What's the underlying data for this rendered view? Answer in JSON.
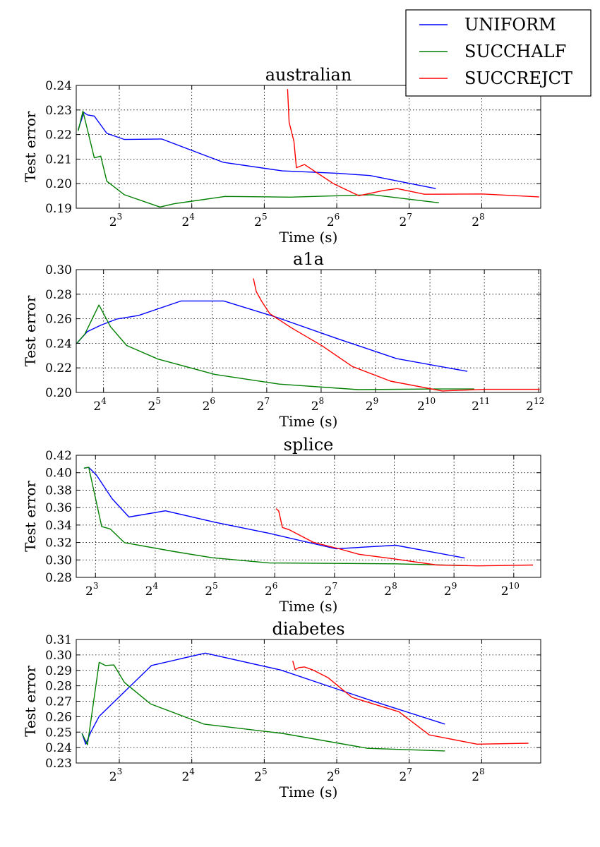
{
  "legend": {
    "placement": "top-right",
    "entries": [
      {
        "label": "UNIFORM",
        "color": "#0000ff"
      },
      {
        "label": "SUCCHALF",
        "color": "#007f00"
      },
      {
        "label": "SUCCREJCT",
        "color": "#ff0000"
      }
    ]
  },
  "chart_data": [
    {
      "type": "line",
      "title": "australian",
      "xlabel": "Time (s)",
      "ylabel": "Test error",
      "x_scale": "log2",
      "xlim": [
        5.3,
        450
      ],
      "ylim": [
        0.19,
        0.24
      ],
      "x_ticks": [
        {
          "value": 8,
          "base": "2",
          "exp": "3"
        },
        {
          "value": 16,
          "base": "2",
          "exp": "4"
        },
        {
          "value": 32,
          "base": "2",
          "exp": "5"
        },
        {
          "value": 64,
          "base": "2",
          "exp": "6"
        },
        {
          "value": 128,
          "base": "2",
          "exp": "7"
        },
        {
          "value": 256,
          "base": "2",
          "exp": "8"
        }
      ],
      "y_ticks": [
        "0.19",
        "0.20",
        "0.21",
        "0.22",
        "0.23",
        "0.24"
      ],
      "grid": true,
      "series": [
        {
          "name": "UNIFORM",
          "color": "#0000ff",
          "points": [
            [
              5.4,
              0.222
            ],
            [
              5.7,
              0.229
            ],
            [
              5.9,
              0.228
            ],
            [
              6.3,
              0.2275
            ],
            [
              7.1,
              0.2205
            ],
            [
              8.4,
              0.218
            ],
            [
              12,
              0.2182
            ],
            [
              21.6,
              0.2087
            ],
            [
              38,
              0.2052
            ],
            [
              65,
              0.2042
            ],
            [
              88,
              0.2033
            ],
            [
              165,
              0.198
            ]
          ]
        },
        {
          "name": "SUCCHALF",
          "color": "#007f00",
          "points": [
            [
              5.4,
              0.2215
            ],
            [
              5.65,
              0.2295
            ],
            [
              6.3,
              0.2105
            ],
            [
              6.7,
              0.2112
            ],
            [
              7.1,
              0.201
            ],
            [
              8.4,
              0.1955
            ],
            [
              11.8,
              0.1905
            ],
            [
              13.5,
              0.1918
            ],
            [
              22,
              0.1948
            ],
            [
              41,
              0.1945
            ],
            [
              90,
              0.1955
            ],
            [
              170,
              0.1922
            ]
          ]
        },
        {
          "name": "SUCCREJCT",
          "color": "#ff0000",
          "points": [
            [
              40,
              0.2385
            ],
            [
              40.6,
              0.225
            ],
            [
              42.5,
              0.2172
            ],
            [
              43.5,
              0.2065
            ],
            [
              47,
              0.2078
            ],
            [
              62,
              0.2
            ],
            [
              79,
              0.1951
            ],
            [
              100,
              0.1972
            ],
            [
              114,
              0.198
            ],
            [
              148,
              0.1957
            ],
            [
              257,
              0.1958
            ],
            [
              443,
              0.1946
            ]
          ]
        }
      ]
    },
    {
      "type": "line",
      "title": "a1a",
      "xlabel": "Time (s)",
      "ylabel": "Test error",
      "x_scale": "log2",
      "xlim": [
        11.3,
        4200
      ],
      "ylim": [
        0.2,
        0.3
      ],
      "x_ticks": [
        {
          "value": 16,
          "base": "2",
          "exp": "4"
        },
        {
          "value": 32,
          "base": "2",
          "exp": "5"
        },
        {
          "value": 64,
          "base": "2",
          "exp": "6"
        },
        {
          "value": 128,
          "base": "2",
          "exp": "7"
        },
        {
          "value": 256,
          "base": "2",
          "exp": "8"
        },
        {
          "value": 512,
          "base": "2",
          "exp": "9"
        },
        {
          "value": 1024,
          "base": "2",
          "exp": "10"
        },
        {
          "value": 2048,
          "base": "2",
          "exp": "11"
        },
        {
          "value": 4096,
          "base": "2",
          "exp": "12"
        }
      ],
      "y_ticks": [
        "0.20",
        "0.22",
        "0.24",
        "0.26",
        "0.28",
        "0.30"
      ],
      "grid": true,
      "series": [
        {
          "name": "UNIFORM",
          "color": "#0000ff",
          "points": [
            [
              11.4,
              0.2402
            ],
            [
              13,
              0.2495
            ],
            [
              15.5,
              0.2548
            ],
            [
              19,
              0.2598
            ],
            [
              25,
              0.2627
            ],
            [
              43,
              0.2745
            ],
            [
              74,
              0.2745
            ],
            [
              145,
              0.2612
            ],
            [
              315,
              0.2438
            ],
            [
              670,
              0.2275
            ],
            [
              1650,
              0.2172
            ]
          ]
        },
        {
          "name": "SUCCHALF",
          "color": "#007f00",
          "points": [
            [
              11.4,
              0.2402
            ],
            [
              12.6,
              0.2475
            ],
            [
              15.1,
              0.2712
            ],
            [
              17.5,
              0.2535
            ],
            [
              21.5,
              0.2382
            ],
            [
              32,
              0.2272
            ],
            [
              66,
              0.2147
            ],
            [
              150,
              0.2068
            ],
            [
              410,
              0.2023
            ],
            [
              1100,
              0.2028
            ],
            [
              1800,
              0.2028
            ]
          ]
        },
        {
          "name": "SUCCREJCT",
          "color": "#ff0000",
          "points": [
            [
              108,
              0.2928
            ],
            [
              112,
              0.2822
            ],
            [
              120,
              0.2742
            ],
            [
              133,
              0.2642
            ],
            [
              175,
              0.2527
            ],
            [
              260,
              0.2378
            ],
            [
              380,
              0.2212
            ],
            [
              620,
              0.2092
            ],
            [
              1200,
              0.2012
            ],
            [
              2100,
              0.2025
            ],
            [
              4150,
              0.2025
            ]
          ]
        }
      ]
    },
    {
      "type": "line",
      "title": "splice",
      "xlabel": "Time (s)",
      "ylabel": "Test error",
      "x_scale": "log2",
      "xlim": [
        6.4,
        1400
      ],
      "ylim": [
        0.28,
        0.42
      ],
      "x_ticks": [
        {
          "value": 8,
          "base": "2",
          "exp": "3"
        },
        {
          "value": 16,
          "base": "2",
          "exp": "4"
        },
        {
          "value": 32,
          "base": "2",
          "exp": "5"
        },
        {
          "value": 64,
          "base": "2",
          "exp": "6"
        },
        {
          "value": 128,
          "base": "2",
          "exp": "7"
        },
        {
          "value": 256,
          "base": "2",
          "exp": "8"
        },
        {
          "value": 512,
          "base": "2",
          "exp": "9"
        },
        {
          "value": 1024,
          "base": "2",
          "exp": "10"
        }
      ],
      "y_ticks": [
        "0.28",
        "0.30",
        "0.32",
        "0.34",
        "0.36",
        "0.38",
        "0.40",
        "0.42"
      ],
      "grid": true,
      "series": [
        {
          "name": "UNIFORM",
          "color": "#0000ff",
          "points": [
            [
              7,
              0.4052
            ],
            [
              7.4,
              0.4062
            ],
            [
              8.1,
              0.3972
            ],
            [
              9.7,
              0.3702
            ],
            [
              11.8,
              0.3492
            ],
            [
              18,
              0.3563
            ],
            [
              32,
              0.3432
            ],
            [
              60,
              0.3305
            ],
            [
              130,
              0.3128
            ],
            [
              260,
              0.3168
            ],
            [
              580,
              0.3022
            ]
          ]
        },
        {
          "name": "SUCCHALF",
          "color": "#007f00",
          "points": [
            [
              7,
              0.4052
            ],
            [
              7.4,
              0.4062
            ],
            [
              8.6,
              0.3382
            ],
            [
              9.5,
              0.3355
            ],
            [
              11.2,
              0.3198
            ],
            [
              20,
              0.3095
            ],
            [
              31,
              0.3025
            ],
            [
              60,
              0.2965
            ],
            [
              260,
              0.2955
            ],
            [
              600,
              0.2935
            ]
          ]
        },
        {
          "name": "SUCCREJCT",
          "color": "#ff0000",
          "points": [
            [
              65,
              0.3588
            ],
            [
              67,
              0.3562
            ],
            [
              70,
              0.3372
            ],
            [
              76,
              0.3345
            ],
            [
              100,
              0.3202
            ],
            [
              135,
              0.3128
            ],
            [
              170,
              0.3065
            ],
            [
              250,
              0.3015
            ],
            [
              420,
              0.2942
            ],
            [
              680,
              0.2932
            ],
            [
              1280,
              0.2942
            ]
          ]
        }
      ]
    },
    {
      "type": "line",
      "title": "diabetes",
      "xlabel": "Time (s)",
      "ylabel": "Test error",
      "x_scale": "log2",
      "xlim": [
        5.3,
        450
      ],
      "ylim": [
        0.23,
        0.31
      ],
      "x_ticks": [
        {
          "value": 8,
          "base": "2",
          "exp": "3"
        },
        {
          "value": 16,
          "base": "2",
          "exp": "4"
        },
        {
          "value": 32,
          "base": "2",
          "exp": "5"
        },
        {
          "value": 64,
          "base": "2",
          "exp": "6"
        },
        {
          "value": 128,
          "base": "2",
          "exp": "7"
        },
        {
          "value": 256,
          "base": "2",
          "exp": "8"
        }
      ],
      "y_ticks": [
        "0.23",
        "0.24",
        "0.25",
        "0.26",
        "0.27",
        "0.28",
        "0.29",
        "0.30",
        "0.31"
      ],
      "grid": true,
      "series": [
        {
          "name": "UNIFORM",
          "color": "#0000ff",
          "points": [
            [
              5.6,
              0.2492
            ],
            [
              5.8,
              0.2422
            ],
            [
              6.1,
              0.2502
            ],
            [
              6.6,
              0.2602
            ],
            [
              7.8,
              0.2712
            ],
            [
              10.9,
              0.2932
            ],
            [
              18.2,
              0.3012
            ],
            [
              37.5,
              0.2902
            ],
            [
              90,
              0.2702
            ],
            [
              180,
              0.2552
            ]
          ]
        },
        {
          "name": "SUCCHALF",
          "color": "#007f00",
          "points": [
            [
              5.6,
              0.2492
            ],
            [
              5.9,
              0.2418
            ],
            [
              6.6,
              0.2952
            ],
            [
              7,
              0.2932
            ],
            [
              7.6,
              0.2935
            ],
            [
              8.4,
              0.2822
            ],
            [
              10.8,
              0.2682
            ],
            [
              18,
              0.2552
            ],
            [
              38,
              0.2492
            ],
            [
              86,
              0.2395
            ],
            [
              180,
              0.2378
            ]
          ]
        },
        {
          "name": "SUCCREJCT",
          "color": "#ff0000",
          "points": [
            [
              42,
              0.2962
            ],
            [
              43,
              0.2905
            ],
            [
              44.5,
              0.2918
            ],
            [
              47,
              0.2922
            ],
            [
              51,
              0.2902
            ],
            [
              59,
              0.2852
            ],
            [
              74,
              0.2725
            ],
            [
              116,
              0.2632
            ],
            [
              155,
              0.2482
            ],
            [
              245,
              0.2422
            ],
            [
              400,
              0.2428
            ]
          ]
        }
      ]
    }
  ]
}
